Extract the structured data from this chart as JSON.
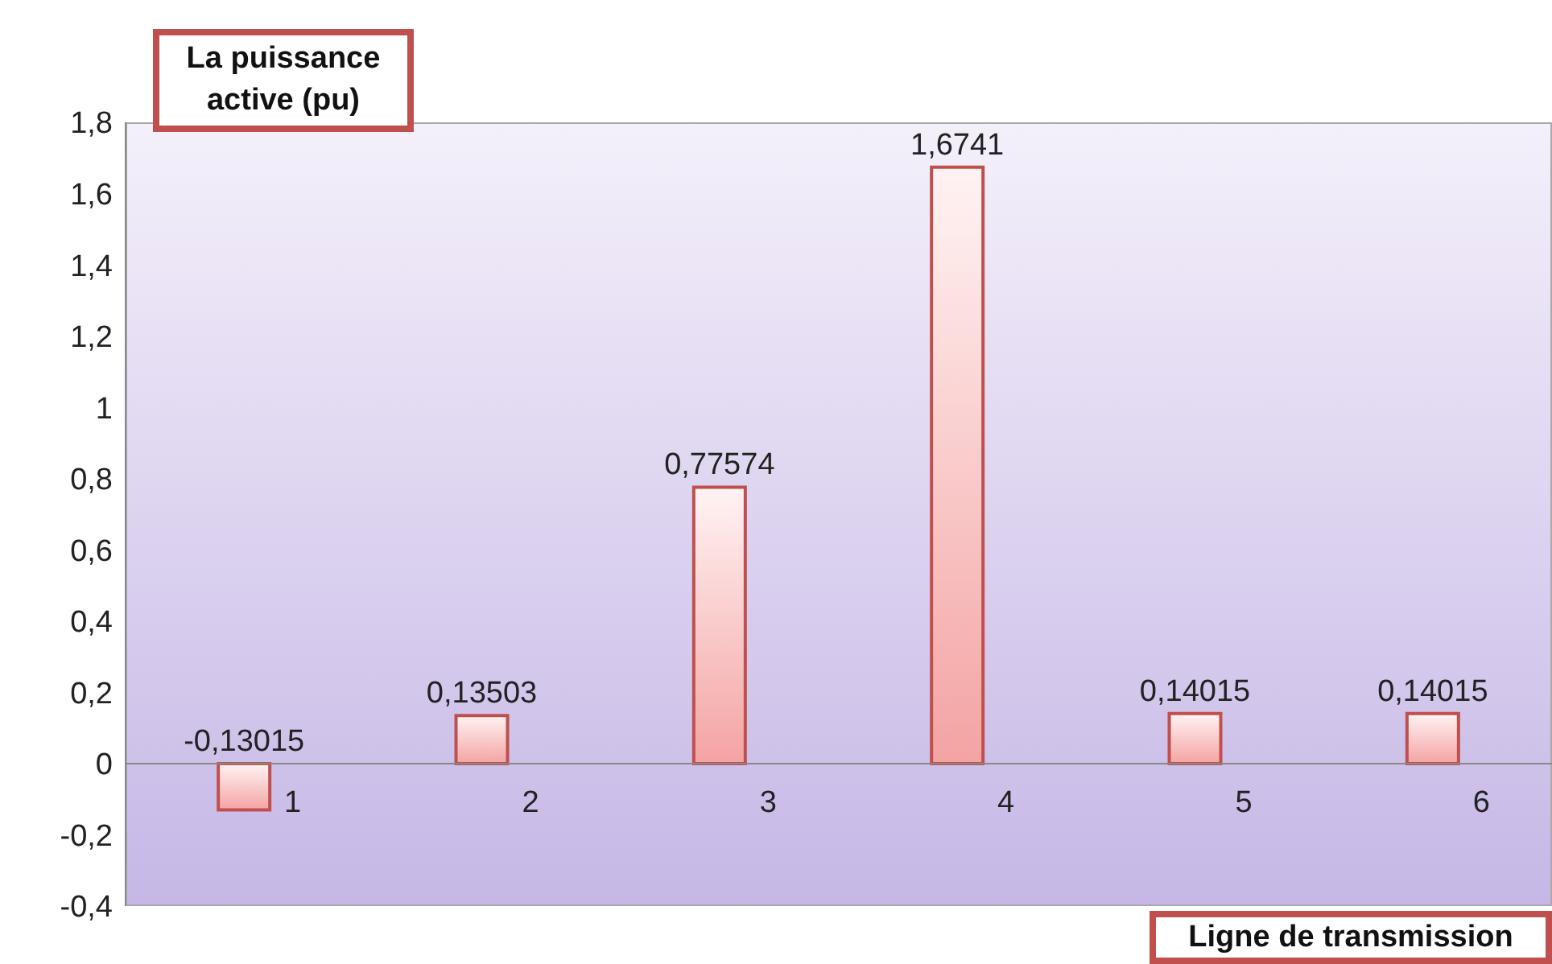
{
  "chart_data": {
    "type": "bar",
    "xlabel": "Ligne de transmission",
    "ylabel": "La puissance active (pu)",
    "categories": [
      "1",
      "2",
      "3",
      "4",
      "5",
      "6"
    ],
    "values": [
      -0.13015,
      0.13503,
      0.77574,
      1.6741,
      0.14015,
      0.14015
    ],
    "value_labels": [
      "-0,13015",
      "0,13503",
      "0,77574",
      "1,6741",
      "0,14015",
      "0,14015"
    ],
    "color": "#c0504d",
    "ylim": [
      -0.4,
      1.8
    ],
    "yticks": [
      {
        "value": -0.4,
        "label": "-0,4"
      },
      {
        "value": -0.2,
        "label": "-0,2"
      },
      0,
      {
        "value": 0.2,
        "label": "0,2"
      },
      {
        "value": 0.4,
        "label": "0,4"
      },
      {
        "value": 0.6,
        "label": "0,6"
      },
      {
        "value": 0.8,
        "label": "0,8"
      },
      1,
      {
        "value": 1.2,
        "label": "1,2"
      },
      {
        "value": 1.4,
        "label": "1,4"
      },
      {
        "value": 1.6,
        "label": "1,6"
      },
      {
        "value": 1.8,
        "label": "1,8"
      }
    ]
  }
}
